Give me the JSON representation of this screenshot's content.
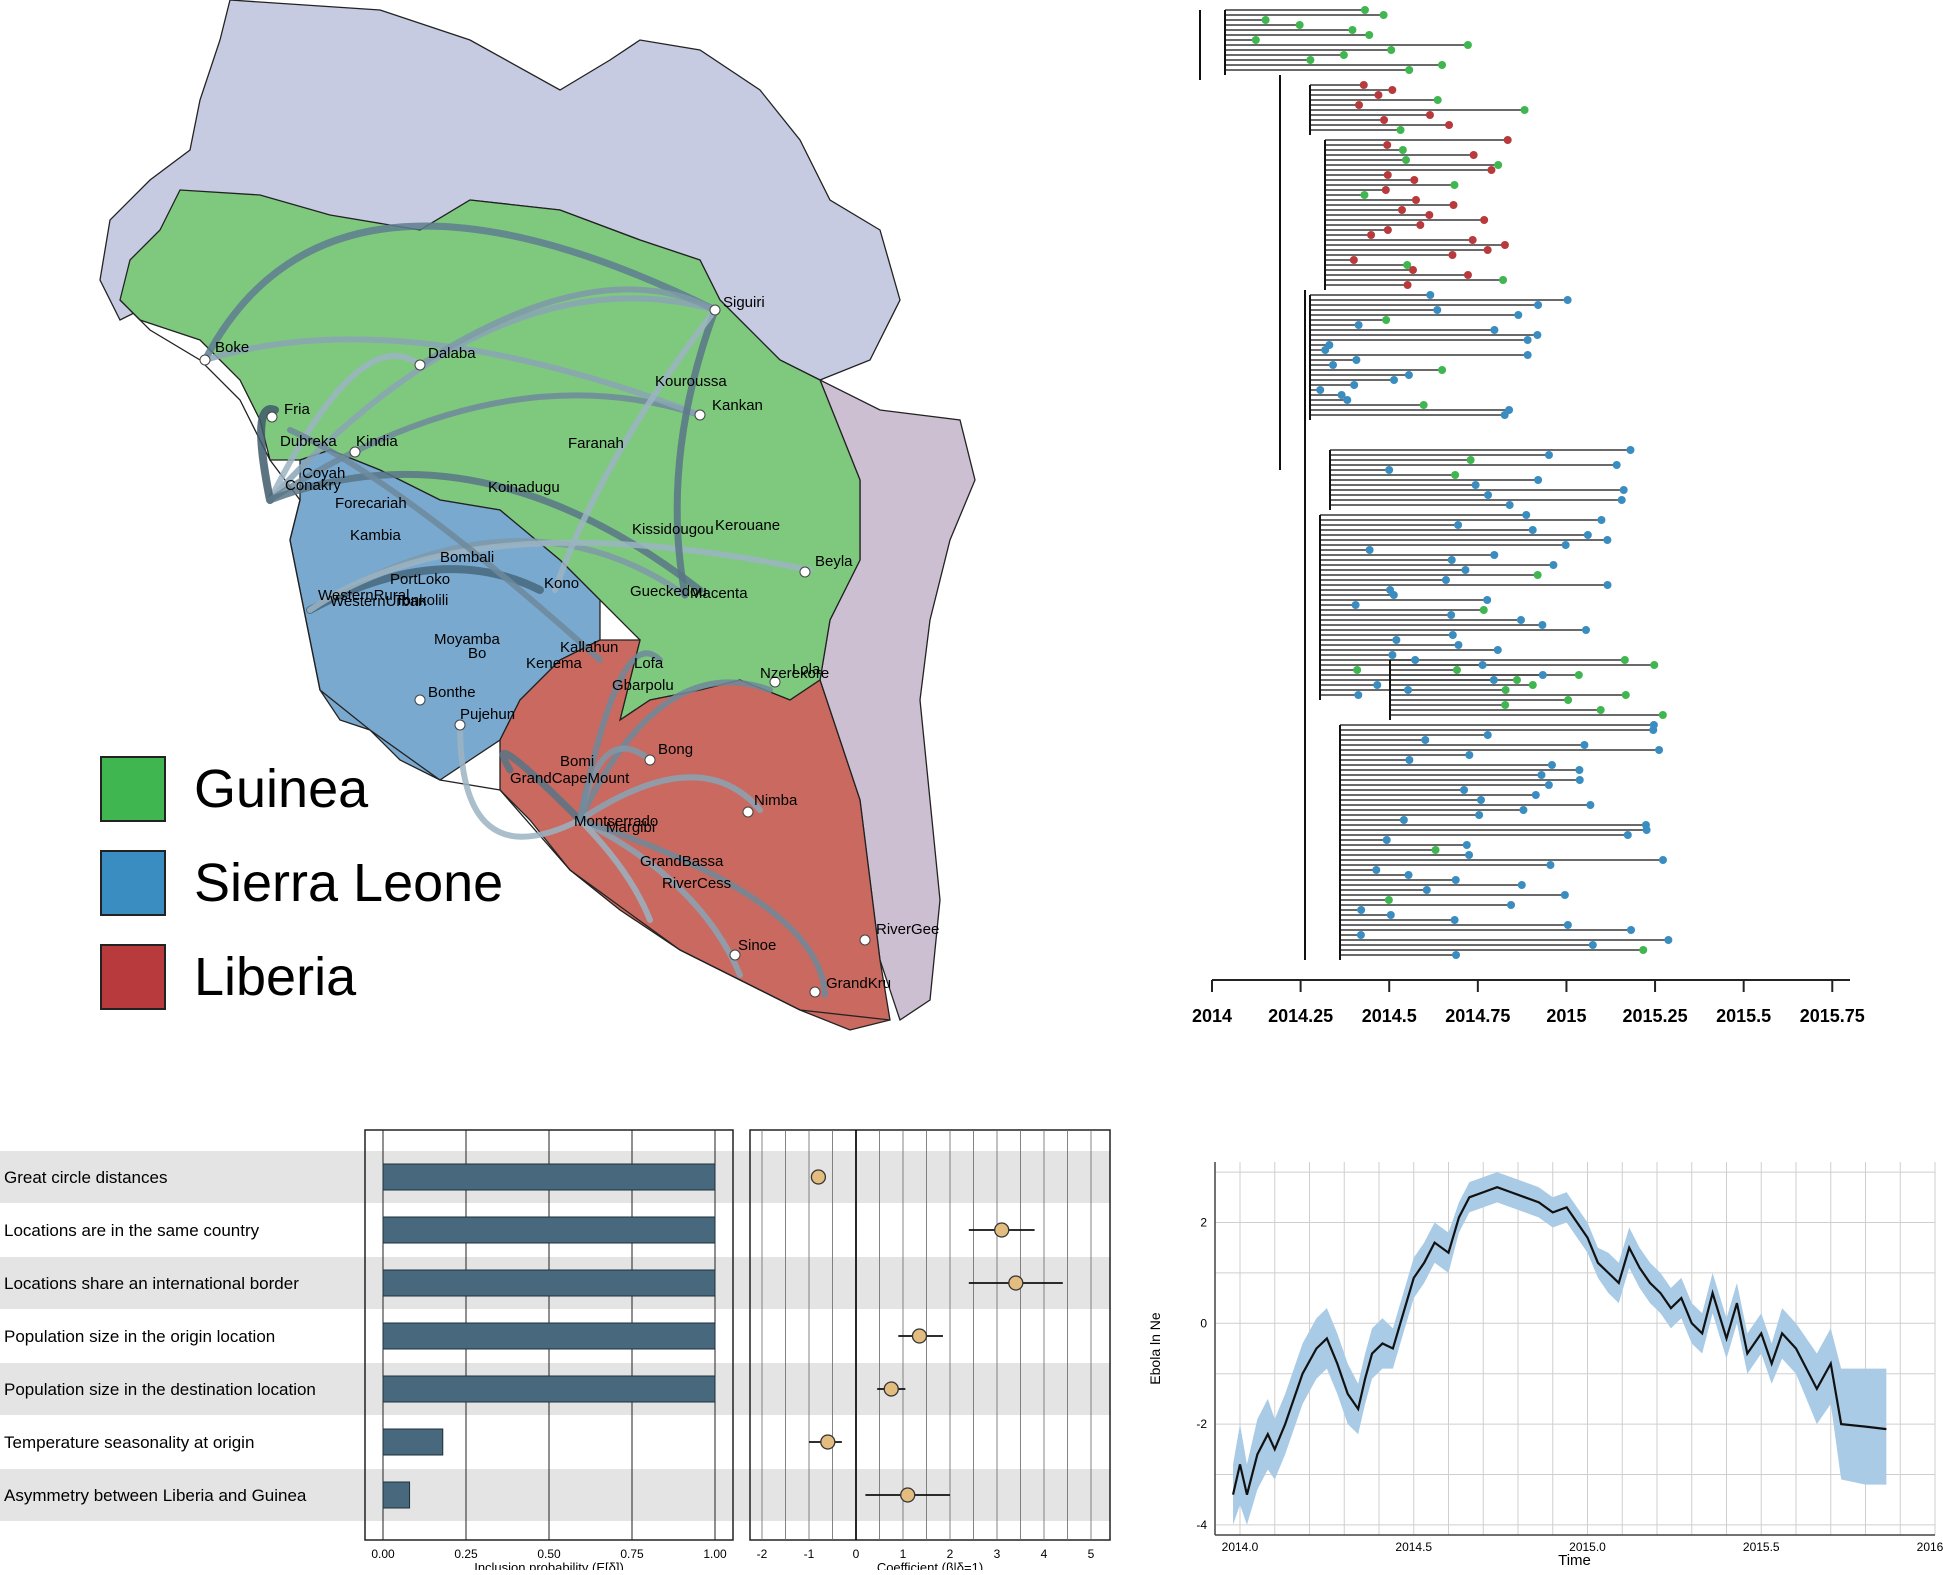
{
  "colors": {
    "guinea": "#3fb650",
    "sierra_leone": "#3a8dc0",
    "liberia": "#b83a3c",
    "neighbor_north": "#c6cbe2",
    "neighbor_east": "#cdbfd2",
    "route": "#6f8a9b",
    "bar": "#47687d",
    "dot": "#e3bd80",
    "band": "#a9cbe6"
  },
  "map": {
    "legend": [
      {
        "name": "Guinea",
        "color": "#3fb650"
      },
      {
        "name": "Sierra Leone",
        "color": "#3a8dc0"
      },
      {
        "name": "Liberia",
        "color": "#b83a3c"
      }
    ],
    "locations": [
      "Boke",
      "Fria",
      "Dalaba",
      "Dubreka",
      "Kindia",
      "Coyah",
      "Conakry",
      "Forecariah",
      "Kambia",
      "Koinadugu",
      "Bombali",
      "PortLoko",
      "Tonkolili",
      "WesternRural",
      "WesternUrban",
      "Kono",
      "Moyamba",
      "Bo",
      "Kenema",
      "Kallahun",
      "Bonthe",
      "Pujehun",
      "Siguiri",
      "Kouroussa",
      "Kankan",
      "Faranah",
      "Kissidougou",
      "Kerouane",
      "Beyla",
      "Gueckedou",
      "Macenta",
      "Lofa",
      "Gbarpolu",
      "Nzerekore",
      "Lola",
      "Bomi",
      "GrandCapeMount",
      "Bong",
      "Nimba",
      "Montserrado",
      "Margibi",
      "GrandBassa",
      "RiverCess",
      "Sinoe",
      "RiverGee",
      "GrandKru"
    ]
  },
  "tree_chart": {
    "type": "scatter",
    "ticks": [
      "2014",
      "2014.25",
      "2014.5",
      "2014.75",
      "2015",
      "2015.25",
      "2015.5",
      "2015.75"
    ],
    "xlim": [
      2014,
      2015.8
    ]
  },
  "glm": {
    "predictors": [
      "Great circle distances",
      "Locations are in the same country",
      "Locations share an international border",
      "Population size in the origin location",
      "Population size in the destination location",
      "Temperature seasonality at origin",
      "Asymmetry between Liberia and Guinea"
    ],
    "inclusion_ticks": [
      "0.00",
      "0.25",
      "0.50",
      "0.75",
      "1.00"
    ],
    "coef_ticks": [
      "-2",
      "-1",
      "0",
      "1",
      "2",
      "3",
      "4",
      "5"
    ],
    "inclusion_xlabel": "Inclusion probability  (E[δ])",
    "coef_xlabel": "Coefficient     (β|δ=1)"
  },
  "chart_data": [
    {
      "type": "bar",
      "title": "",
      "categories": [
        "Great circle distances",
        "Locations are in the same country",
        "Locations share an international border",
        "Population size in the origin location",
        "Population size in the destination location",
        "Temperature seasonality at origin",
        "Asymmetry between Liberia and Guinea"
      ],
      "values": [
        1.0,
        1.0,
        1.0,
        1.0,
        1.0,
        0.18,
        0.08
      ],
      "xlabel": "Inclusion probability  (E[δ])",
      "xlim": [
        0,
        1
      ]
    },
    {
      "type": "scatter",
      "title": "",
      "categories": [
        "Great circle distances",
        "Locations are in the same country",
        "Locations share an international border",
        "Population size in the origin location",
        "Population size in the destination location",
        "Temperature seasonality at origin",
        "Asymmetry between Liberia and Guinea"
      ],
      "values": [
        -0.8,
        3.1,
        3.4,
        1.35,
        0.75,
        -0.6,
        1.1
      ],
      "lower": [
        -0.8,
        2.4,
        2.4,
        0.9,
        0.45,
        -1.0,
        0.2
      ],
      "upper": [
        -0.8,
        3.8,
        4.4,
        1.85,
        1.05,
        -0.3,
        2.0
      ],
      "xlabel": "Coefficient     (β|δ=1)",
      "xlim": [
        -2.2,
        5.3
      ]
    },
    {
      "type": "line",
      "title": "",
      "xlabel": "Time",
      "ylabel": "Ebola ln Ne",
      "xlim": [
        2014.0,
        2016.0
      ],
      "ylim": [
        -4,
        2
      ],
      "x_ticks": [
        "2014.0",
        "2014.5",
        "2015.0",
        "2015.5",
        "2016.0"
      ],
      "y_ticks": [
        "-4",
        "-2",
        "0",
        "2"
      ],
      "x": [
        2013.98,
        2014.0,
        2014.02,
        2014.05,
        2014.08,
        2014.1,
        2014.13,
        2014.15,
        2014.18,
        2014.22,
        2014.25,
        2014.28,
        2014.31,
        2014.34,
        2014.36,
        2014.38,
        2014.41,
        2014.44,
        2014.47,
        2014.5,
        2014.53,
        2014.56,
        2014.6,
        2014.63,
        2014.66,
        2014.7,
        2014.74,
        2014.78,
        2014.82,
        2014.86,
        2014.9,
        2014.94,
        2014.97,
        2015.0,
        2015.03,
        2015.06,
        2015.09,
        2015.12,
        2015.15,
        2015.18,
        2015.21,
        2015.24,
        2015.27,
        2015.3,
        2015.33,
        2015.36,
        2015.4,
        2015.43,
        2015.46,
        2015.5,
        2015.53,
        2015.56,
        2015.6,
        2015.63,
        2015.66,
        2015.7,
        2015.73,
        2015.8,
        2015.86
      ],
      "y": [
        -3.4,
        -2.8,
        -3.4,
        -2.6,
        -2.2,
        -2.5,
        -2.0,
        -1.6,
        -1.0,
        -0.5,
        -0.3,
        -0.8,
        -1.4,
        -1.7,
        -1.1,
        -0.6,
        -0.4,
        -0.5,
        0.2,
        0.9,
        1.2,
        1.6,
        1.4,
        2.1,
        2.5,
        2.6,
        2.7,
        2.6,
        2.5,
        2.4,
        2.2,
        2.3,
        2.0,
        1.7,
        1.2,
        1.0,
        0.8,
        1.5,
        1.1,
        0.8,
        0.6,
        0.3,
        0.5,
        0.0,
        -0.2,
        0.6,
        -0.3,
        0.4,
        -0.6,
        -0.2,
        -0.8,
        -0.2,
        -0.5,
        -0.9,
        -1.3,
        -0.8,
        -2.0,
        -2.05,
        -2.1
      ],
      "lower": [
        -4.0,
        -3.6,
        -4.0,
        -3.3,
        -2.9,
        -3.1,
        -2.6,
        -2.2,
        -1.6,
        -1.1,
        -0.9,
        -1.4,
        -2.0,
        -2.2,
        -1.6,
        -1.1,
        -0.9,
        -0.9,
        -0.2,
        0.5,
        0.8,
        1.2,
        1.0,
        1.8,
        2.2,
        2.3,
        2.4,
        2.3,
        2.2,
        2.1,
        1.9,
        2.0,
        1.7,
        1.4,
        0.9,
        0.6,
        0.4,
        1.1,
        0.7,
        0.4,
        0.2,
        -0.1,
        0.1,
        -0.4,
        -0.6,
        0.2,
        -0.7,
        0.0,
        -1.0,
        -0.6,
        -1.2,
        -0.7,
        -1.0,
        -1.5,
        -2.0,
        -1.6,
        -3.1,
        -3.2,
        -3.2
      ],
      "upper": [
        -2.8,
        -2.0,
        -2.8,
        -1.9,
        -1.5,
        -1.9,
        -1.4,
        -1.0,
        -0.4,
        0.1,
        0.3,
        -0.2,
        -0.8,
        -1.2,
        -0.6,
        -0.1,
        0.1,
        -0.1,
        0.6,
        1.3,
        1.6,
        2.0,
        1.8,
        2.4,
        2.8,
        2.9,
        3.0,
        2.9,
        2.8,
        2.7,
        2.5,
        2.6,
        2.3,
        2.0,
        1.5,
        1.4,
        1.2,
        1.9,
        1.5,
        1.2,
        1.0,
        0.7,
        0.9,
        0.4,
        0.2,
        1.0,
        0.1,
        0.8,
        -0.2,
        0.2,
        -0.4,
        0.3,
        0.0,
        -0.3,
        -0.6,
        -0.1,
        -0.9,
        -0.9,
        -0.9
      ]
    }
  ]
}
